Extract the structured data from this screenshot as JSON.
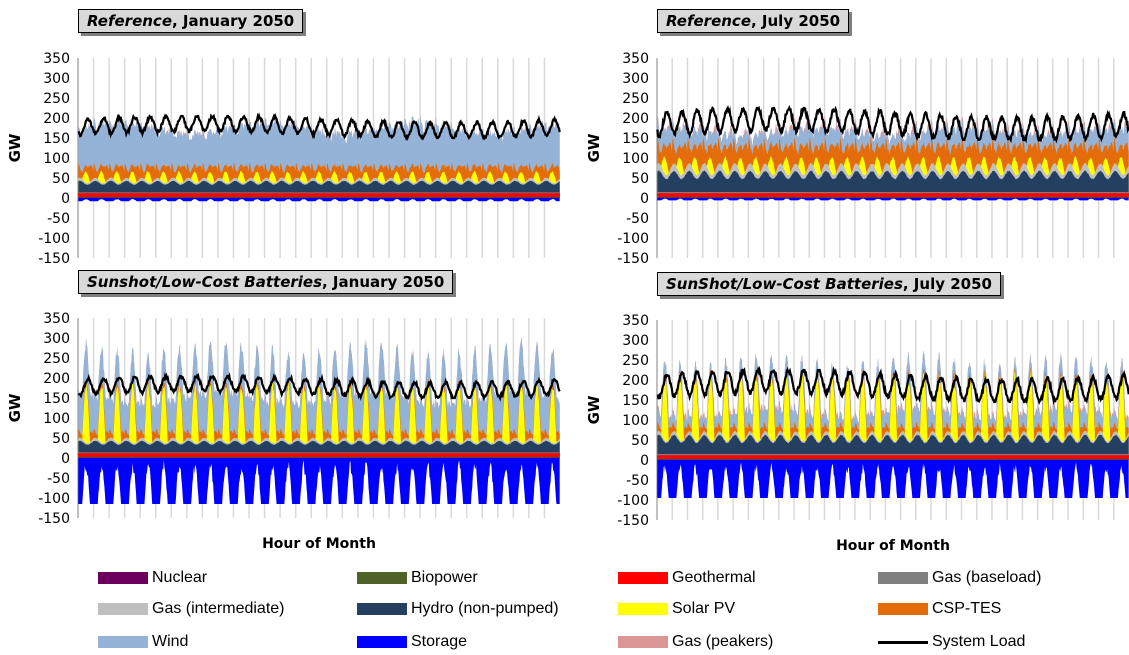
{
  "colors": {
    "nuclear": "#6b005e",
    "biopower": "#4f6228",
    "geothermal": "#ff0000",
    "gas_baseload": "#7f7f7f",
    "gas_intermediate": "#bfbfbf",
    "hydro": "#243f60",
    "solar_pv": "#ffff00",
    "csp_tes": "#e46c0a",
    "wind": "#95b3d7",
    "storage": "#0000ff",
    "gas_peakers": "#d99694",
    "system_load": "#000000",
    "grid": "#d9d9d9",
    "title_bg": "#d9d9d9"
  },
  "legend": [
    {
      "key": "nuclear",
      "label": "Nuclear",
      "kind": "swatch"
    },
    {
      "key": "biopower",
      "label": "Biopower",
      "kind": "swatch"
    },
    {
      "key": "geothermal",
      "label": "Geothermal",
      "kind": "swatch"
    },
    {
      "key": "gas_baseload",
      "label": "Gas (baseload)",
      "kind": "swatch"
    },
    {
      "key": "gas_intermediate",
      "label": "Gas (intermediate)",
      "kind": "swatch"
    },
    {
      "key": "hydro",
      "label": "Hydro (non-pumped)",
      "kind": "swatch"
    },
    {
      "key": "solar_pv",
      "label": "Solar PV",
      "kind": "swatch"
    },
    {
      "key": "csp_tes",
      "label": "CSP-TES",
      "kind": "swatch"
    },
    {
      "key": "wind",
      "label": "Wind",
      "kind": "swatch"
    },
    {
      "key": "storage",
      "label": "Storage",
      "kind": "swatch"
    },
    {
      "key": "gas_peakers",
      "label": "Gas (peakers)",
      "kind": "swatch"
    },
    {
      "key": "system_load",
      "label": "System Load",
      "kind": "line"
    }
  ],
  "chart_data": [
    {
      "type": "area",
      "title_italic": "Reference",
      "title_rest": ", January 2050",
      "ylabel": "GW",
      "xlabel": "",
      "ylim": [
        -150,
        350
      ],
      "yticks": [
        "350",
        "300",
        "250",
        "200",
        "150",
        "100",
        "50",
        "0",
        "-50",
        "-100",
        "-150"
      ],
      "days": 31,
      "grid": true,
      "profile": {
        "nuclear": 1,
        "biopower": 2,
        "geothermal": 8,
        "gas_baseload": 3,
        "hydro": [
          18,
          30
        ],
        "gas_intermediate": [
          3,
          8
        ],
        "solar_pv": [
          0,
          30
        ],
        "csp_tes": [
          10,
          40
        ],
        "wind": [
          70,
          120
        ],
        "gas_peakers": [
          0,
          3
        ],
        "storage": [
          -8,
          -2
        ],
        "load": [
          150,
          205
        ]
      }
    },
    {
      "type": "area",
      "title_italic": "Reference",
      "title_rest": ", July 2050",
      "ylabel": "GW",
      "xlabel": "",
      "ylim": [
        -150,
        350
      ],
      "yticks": [
        "350",
        "300",
        "250",
        "200",
        "150",
        "100",
        "50",
        "0",
        "-50",
        "-100",
        "-150"
      ],
      "days": 31,
      "grid": true,
      "profile": {
        "nuclear": 1,
        "biopower": 2,
        "geothermal": 8,
        "gas_baseload": 4,
        "hydro": [
          30,
          55
        ],
        "gas_intermediate": [
          8,
          20
        ],
        "solar_pv": [
          0,
          45
        ],
        "csp_tes": [
          20,
          70
        ],
        "wind": [
          20,
          50
        ],
        "gas_peakers": [
          0,
          18
        ],
        "storage": [
          -6,
          -1
        ],
        "load": [
          145,
          225
        ]
      }
    },
    {
      "type": "area",
      "title_italic": "Sunshot/Low-Cost Batteries",
      "title_rest": ", January 2050",
      "ylabel": "GW",
      "xlabel": "Hour of Month",
      "ylim": [
        -150,
        350
      ],
      "yticks": [
        "350",
        "300",
        "250",
        "200",
        "150",
        "100",
        "50",
        "0",
        "-50",
        "-100",
        "-150"
      ],
      "days": 31,
      "grid": true,
      "profile": {
        "nuclear": 1,
        "biopower": 2,
        "geothermal": 8,
        "gas_baseload": 3,
        "hydro": [
          18,
          30
        ],
        "gas_intermediate": [
          3,
          8
        ],
        "solar_pv": [
          0,
          155
        ],
        "csp_tes": [
          5,
          25
        ],
        "wind": [
          60,
          110
        ],
        "gas_peakers": [
          0,
          2
        ],
        "storage": [
          -115,
          -5
        ],
        "load": [
          150,
          205
        ]
      }
    },
    {
      "type": "area",
      "title_italic": "SunShot/Low-Cost Batteries",
      "title_rest": ", July 2050",
      "ylabel": "GW",
      "xlabel": "Hour of Month",
      "ylim": [
        -150,
        350
      ],
      "yticks": [
        "350",
        "300",
        "250",
        "200",
        "150",
        "100",
        "50",
        "0",
        "-50",
        "-100",
        "-150"
      ],
      "days": 31,
      "grid": true,
      "profile": {
        "nuclear": 1,
        "biopower": 2,
        "geothermal": 8,
        "gas_baseload": 4,
        "hydro": [
          25,
          50
        ],
        "gas_intermediate": [
          3,
          10
        ],
        "solar_pv": [
          0,
          175
        ],
        "csp_tes": [
          5,
          25
        ],
        "wind": [
          15,
          50
        ],
        "gas_peakers": [
          0,
          15
        ],
        "storage": [
          -95,
          -5
        ],
        "load": [
          145,
          225
        ]
      }
    }
  ]
}
